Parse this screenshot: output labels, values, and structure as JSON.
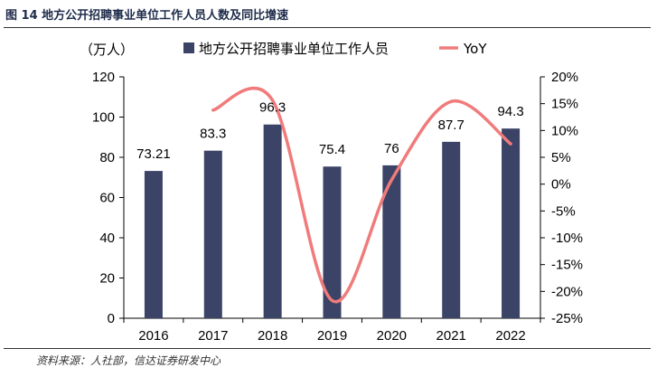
{
  "figure_title": "图 14   地方公开招聘事业单位工作人员人数及同比增速",
  "source": "资料来源：人社部，信达证券研发中心",
  "chart_data": {
    "type": "bar",
    "categories": [
      "2016",
      "2017",
      "2018",
      "2019",
      "2020",
      "2021",
      "2022"
    ],
    "series": [
      {
        "name": "地方公开招聘事业单位工作人员",
        "type": "bar",
        "axis": "left",
        "values": [
          73.21,
          83.3,
          96.3,
          75.4,
          76,
          87.7,
          94.3
        ],
        "labels": [
          "73.21",
          "83.3",
          "96.3",
          "75.4",
          "76",
          "87.7",
          "94.3"
        ],
        "color": "#3b4366"
      },
      {
        "name": "YoY",
        "type": "line",
        "axis": "right",
        "smooth": true,
        "values": [
          null,
          13.8,
          15.6,
          -21.7,
          0.8,
          15.4,
          7.5
        ],
        "color": "#f07b7b"
      }
    ],
    "left_unit_label": "（万人）",
    "ylim_left": [
      0,
      120
    ],
    "yticks_left": [
      0,
      20,
      40,
      60,
      80,
      100,
      120
    ],
    "ylim_right": [
      -25,
      20
    ],
    "yticks_right": [
      "-25%",
      "-20%",
      "-15%",
      "-10%",
      "-5%",
      "0%",
      "5%",
      "10%",
      "15%",
      "20%"
    ],
    "grid": false,
    "legend_position": "top"
  }
}
